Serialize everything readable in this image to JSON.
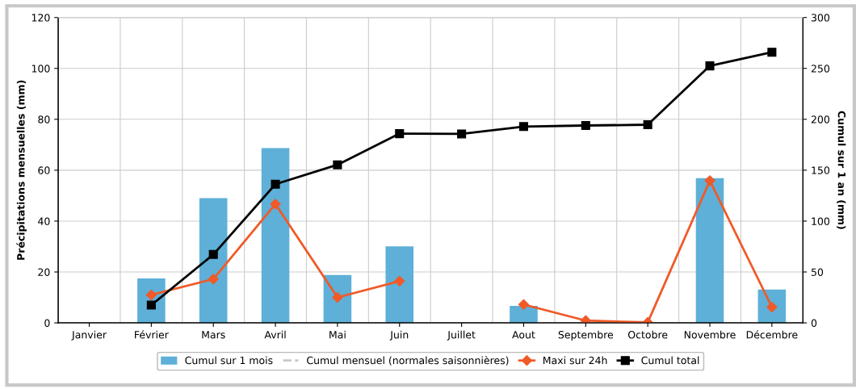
{
  "chart_data": {
    "type": "bar",
    "ylabel": "Précipitations mensuelles (mm)",
    "y2label": "Cumul sur 1 an (mm)",
    "categories": [
      "Janvier",
      "Février",
      "Mars",
      "Avril",
      "Mai",
      "Juin",
      "Juillet",
      "Aout",
      "Septembre",
      "Octobre",
      "Novembre",
      "Décembre"
    ],
    "series": [
      {
        "name": "Cumul sur 1 mois",
        "color": "#5eb0d8",
        "values": [
          null,
          17.5,
          49,
          68.7,
          18.8,
          30.1,
          null,
          6.7,
          null,
          null,
          56.9,
          13.1
        ]
      },
      {
        "name": "Cumul mensuel (normales saisonnières)",
        "type": "line",
        "color": "#c8c8c8",
        "line_style": "dashed",
        "marker": "none",
        "values": [
          null,
          null,
          null,
          null,
          null,
          null,
          null,
          null,
          null,
          null,
          null,
          null
        ]
      },
      {
        "name": "Maxi sur 24h",
        "type": "line",
        "color": "#f05a28",
        "marker": "diamond",
        "values": [
          null,
          11,
          17.2,
          46.7,
          10,
          16.4,
          null,
          7.2,
          0.9,
          0.2,
          55.9,
          6.2
        ]
      },
      {
        "name": "Cumul total",
        "type": "line",
        "axis": "y2",
        "color": "#000000",
        "marker": "square",
        "values": [
          null,
          17.5,
          67.2,
          136.2,
          155.3,
          185.9,
          185.6,
          192.9,
          193.9,
          194.7,
          252.5,
          265.9
        ]
      }
    ],
    "ylim": [
      0,
      120
    ],
    "yticks": [
      0,
      20,
      40,
      60,
      80,
      100,
      120
    ],
    "y2lim": [
      0,
      300
    ],
    "y2ticks": [
      0,
      50,
      100,
      150,
      200,
      250,
      300
    ],
    "grid": true,
    "legend": "bottom"
  }
}
